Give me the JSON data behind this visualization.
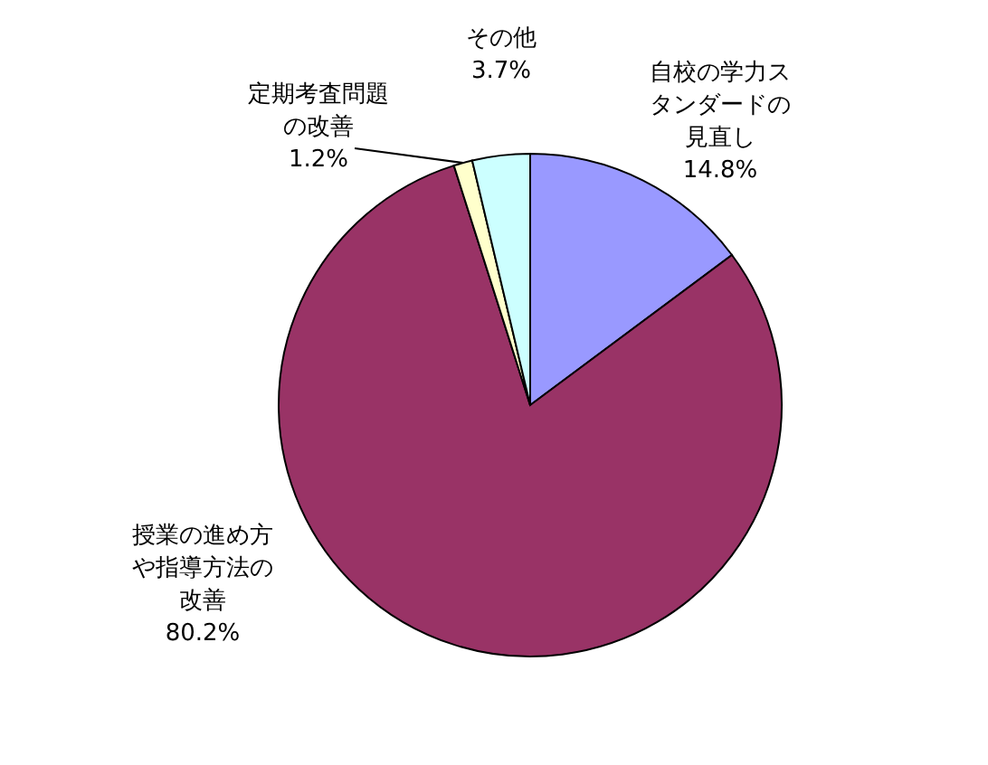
{
  "chart_data": {
    "type": "pie",
    "categories": [
      "自校の学力スタンダードの見直し",
      "授業の進め方や指導方法の改善",
      "定期考査問題の改善",
      "その他"
    ],
    "values": [
      14.8,
      80.2,
      1.2,
      3.7
    ],
    "colors": [
      "#9999ff",
      "#993366",
      "#ffffcc",
      "#ccffff"
    ],
    "value_labels": [
      "14.8%",
      "80.2%",
      "1.2%",
      "3.7%"
    ]
  }
}
